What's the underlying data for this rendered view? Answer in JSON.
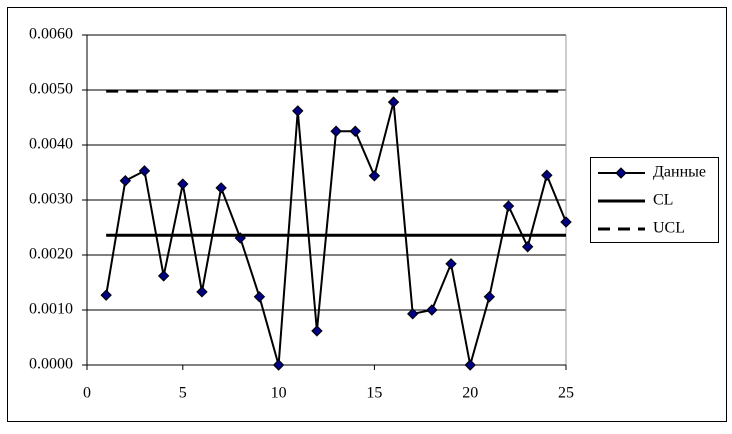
{
  "chart_data": {
    "type": "line",
    "x": [
      1,
      2,
      3,
      4,
      5,
      6,
      7,
      8,
      9,
      10,
      11,
      12,
      13,
      14,
      15,
      16,
      17,
      18,
      19,
      20,
      21,
      22,
      23,
      24,
      25
    ],
    "series": [
      {
        "name": "Данные",
        "color": "#000000",
        "marker_color": "#000080",
        "marker": "diamond",
        "line_style": "solid",
        "values": [
          0.00127,
          0.00335,
          0.00353,
          0.00162,
          0.00329,
          0.00133,
          0.00322,
          0.00231,
          0.00124,
          0,
          0.00462,
          0.00062,
          0.00425,
          0.00425,
          0.00344,
          0.00478,
          0.00093,
          0.001,
          0.00184,
          0,
          0.00124,
          0.00289,
          0.00215,
          0.00345,
          0.0026
        ]
      },
      {
        "name": "CL",
        "color": "#000000",
        "line_style": "solid",
        "values": [
          0.00236,
          0.00236,
          0.00236,
          0.00236,
          0.00236,
          0.00236,
          0.00236,
          0.00236,
          0.00236,
          0.00236,
          0.00236,
          0.00236,
          0.00236,
          0.00236,
          0.00236,
          0.00236,
          0.00236,
          0.00236,
          0.00236,
          0.00236,
          0.00236,
          0.00236,
          0.00236,
          0.00236,
          0.00236
        ]
      },
      {
        "name": "UCL",
        "color": "#000000",
        "line_style": "dashed",
        "values": [
          0.00498,
          0.00498,
          0.00498,
          0.00498,
          0.00498,
          0.00498,
          0.00498,
          0.00498,
          0.00498,
          0.00498,
          0.00498,
          0.00498,
          0.00498,
          0.00498,
          0.00498,
          0.00498,
          0.00498,
          0.00498,
          0.00498,
          0.00498,
          0.00498,
          0.00498,
          0.00498,
          0.00498,
          0.00498
        ]
      }
    ],
    "xlim": [
      0,
      25
    ],
    "xticks": [
      0,
      5,
      10,
      15,
      20,
      25
    ],
    "ylim": [
      0,
      0.006
    ],
    "yticks": [
      {
        "value": 0,
        "label": "0.0000"
      },
      {
        "value": 0.001,
        "label": "0.0010"
      },
      {
        "value": 0.002,
        "label": "0.0020"
      },
      {
        "value": 0.003,
        "label": "0.0030"
      },
      {
        "value": 0.004,
        "label": "0.0040"
      },
      {
        "value": 0.005,
        "label": "0.0050"
      },
      {
        "value": 0.006,
        "label": "0.0060"
      }
    ],
    "grid": true,
    "legend": "right"
  }
}
